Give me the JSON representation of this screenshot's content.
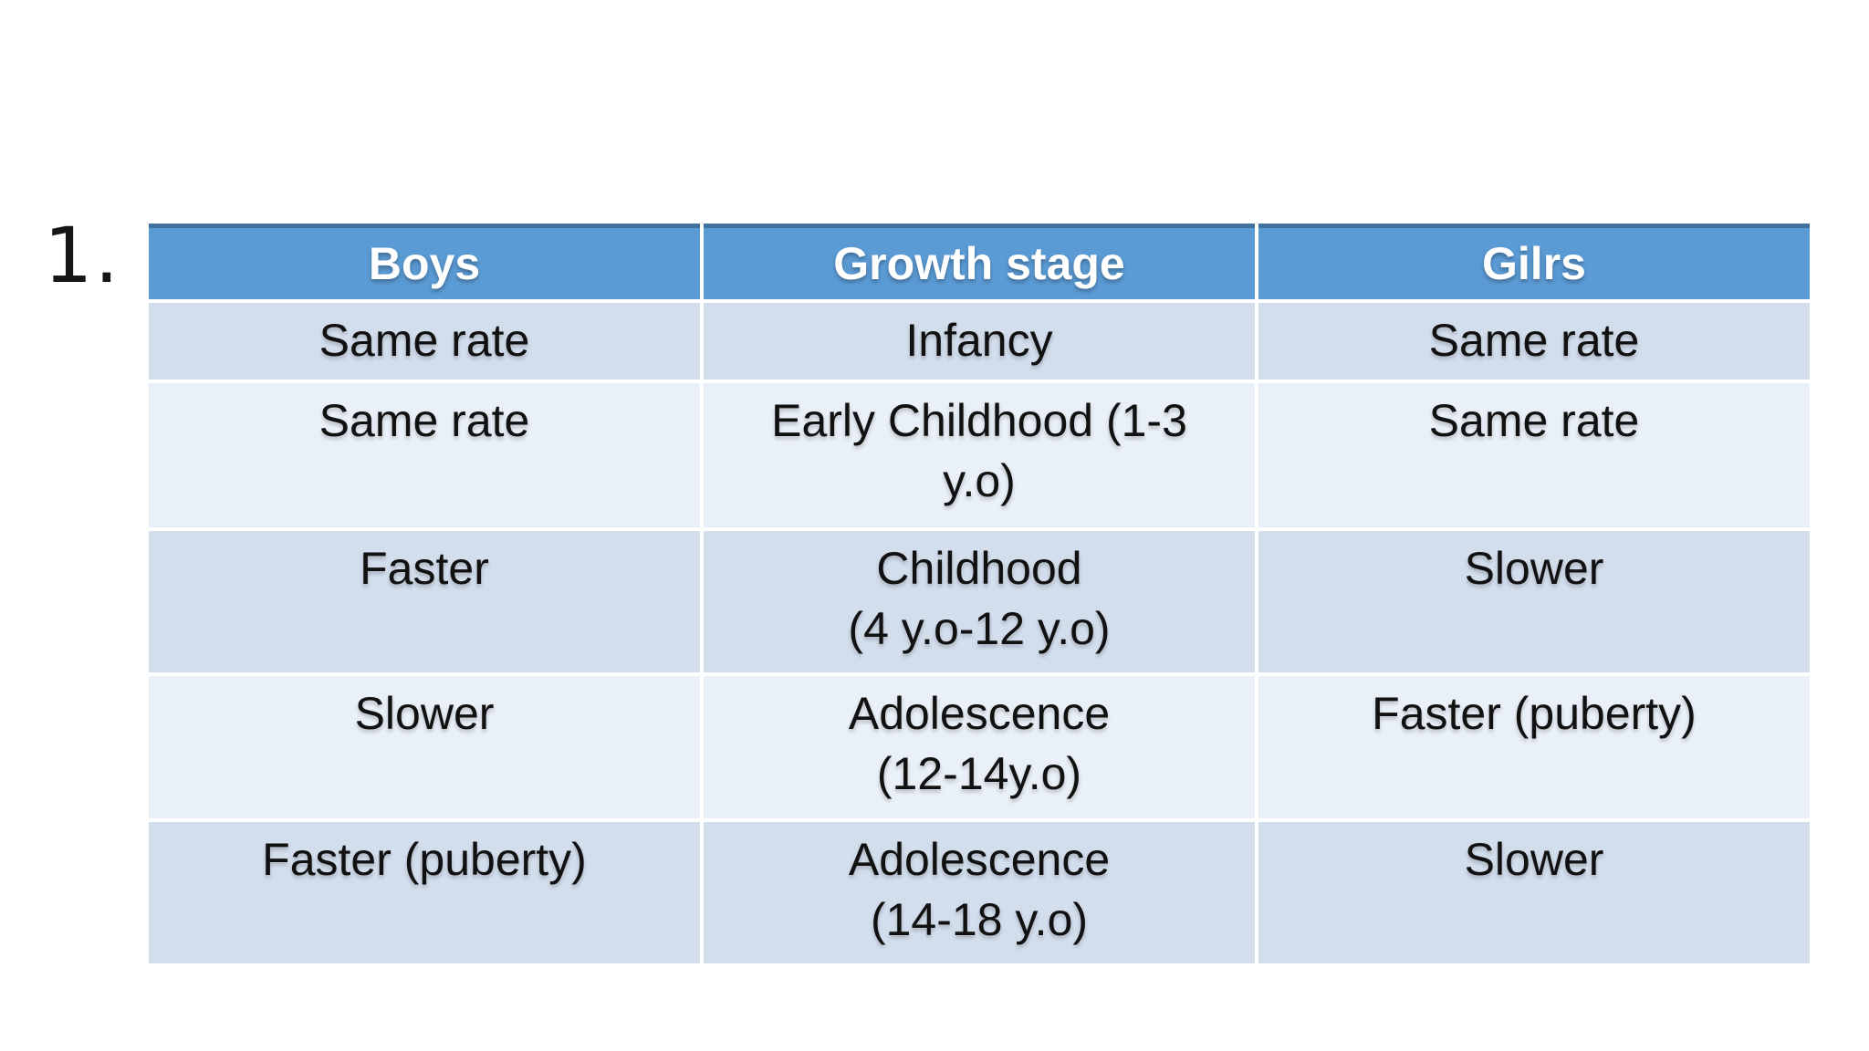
{
  "slide": {
    "list_number": "1.",
    "table": {
      "headers": [
        "Boys",
        "Growth stage",
        "Gilrs"
      ],
      "rows": [
        {
          "cells": [
            "Same rate",
            "Infancy",
            "Same rate"
          ]
        },
        {
          "cells": [
            "Same rate",
            "Early Childhood (1-3\ny.o)",
            "Same rate"
          ]
        },
        {
          "cells": [
            "Faster",
            "Childhood\n(4 y.o-12 y.o)",
            "Slower"
          ]
        },
        {
          "cells": [
            "Slower",
            "Adolescence\n(12-14y.o)",
            "Faster (puberty)"
          ]
        },
        {
          "cells": [
            "Faster (puberty)",
            "Adolescence\n(14-18 y.o)",
            "Slower"
          ]
        }
      ]
    },
    "theme": {
      "header_bg": "#5B9BD5",
      "header_top_border": "#41719C",
      "header_text": "#FFFFFF",
      "band_dark": "#D3DEED",
      "band_light": "#EAF0F8",
      "body_text": "#111111",
      "background": "#FFFFFF"
    }
  }
}
